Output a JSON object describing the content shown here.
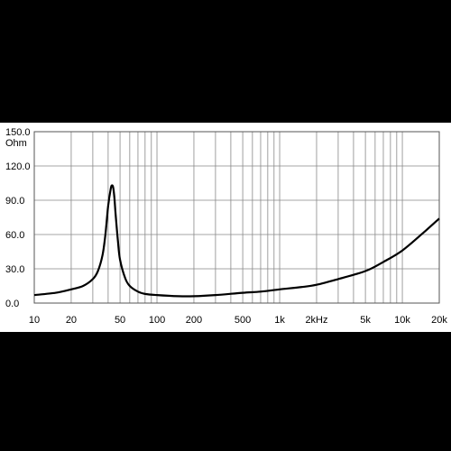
{
  "chart_data": {
    "type": "line",
    "title": "",
    "xlabel": "",
    "ylabel": "Ohm",
    "x_scale": "log",
    "xlim": [
      10,
      20000
    ],
    "ylim": [
      0,
      150
    ],
    "grid": true,
    "x_ticks": [
      {
        "value": 10,
        "label": "10"
      },
      {
        "value": 20,
        "label": "20"
      },
      {
        "value": 50,
        "label": "50"
      },
      {
        "value": 100,
        "label": "100"
      },
      {
        "value": 200,
        "label": "200"
      },
      {
        "value": 500,
        "label": "500"
      },
      {
        "value": 1000,
        "label": "1k"
      },
      {
        "value": 2000,
        "label": "2kHz"
      },
      {
        "value": 5000,
        "label": "5k"
      },
      {
        "value": 10000,
        "label": "10k"
      },
      {
        "value": 20000,
        "label": "20k"
      }
    ],
    "y_ticks": [
      {
        "value": 0,
        "label": "0.0"
      },
      {
        "value": 30,
        "label": "30.0"
      },
      {
        "value": 60,
        "label": "60.0"
      },
      {
        "value": 90,
        "label": "90.0"
      },
      {
        "value": 120,
        "label": "120.0"
      },
      {
        "value": 150,
        "label": "150.0"
      }
    ],
    "series": [
      {
        "x": [
          10,
          15,
          20,
          25,
          30,
          33,
          36,
          38,
          40,
          42,
          43,
          44,
          45,
          46,
          48,
          50,
          55,
          60,
          70,
          80,
          100,
          150,
          200,
          300,
          500,
          700,
          1000,
          1500,
          2000,
          3000,
          5000,
          7000,
          10000,
          15000,
          20000
        ],
        "y": [
          7,
          9,
          12,
          15,
          21,
          28,
          42,
          60,
          85,
          100,
          103,
          101,
          92,
          78,
          55,
          38,
          22,
          15,
          10,
          8,
          7,
          6,
          6,
          7,
          9,
          10,
          12,
          14,
          16,
          21,
          28,
          36,
          46,
          62,
          74
        ]
      }
    ],
    "colors": {
      "line": "#000000",
      "grid": "#888888",
      "background": "#ffffff"
    }
  }
}
